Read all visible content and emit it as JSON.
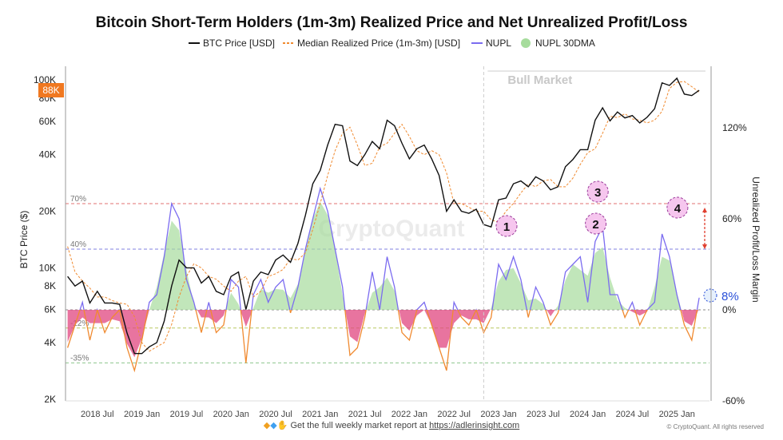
{
  "chart_data": {
    "type": "line",
    "title": "Bitcoin Short-Term Holders (1m-3m)  Realized Price and Net Unrealized Profit/Loss",
    "ylabel": "BTC Price ($)",
    "y2label": "Unrealized Profit/Loss Margin",
    "yscale": "log",
    "ylim": [
      2000,
      120000
    ],
    "y2lim": [
      -60,
      150
    ],
    "grid": false,
    "legend_placement": "top",
    "legend": [
      "BTC Price [USD]",
      "Median Realized Price (1m-3m) [USD]",
      "NUPL",
      "NUPL 30DMA"
    ],
    "y_ticks": [
      {
        "v": 100000,
        "label": "100K"
      },
      {
        "v": 80000,
        "label": "80K"
      },
      {
        "v": 60000,
        "label": "60K"
      },
      {
        "v": 40000,
        "label": "40K"
      },
      {
        "v": 20000,
        "label": "20K"
      },
      {
        "v": 10000,
        "label": "10K"
      },
      {
        "v": 8000,
        "label": "8K"
      },
      {
        "v": 6000,
        "label": "6K"
      },
      {
        "v": 4000,
        "label": "4K"
      },
      {
        "v": 2000,
        "label": "2K"
      }
    ],
    "y2_ticks": [
      {
        "v": 120,
        "label": "120%"
      },
      {
        "v": 60,
        "label": "60%"
      },
      {
        "v": 0,
        "label": "0%"
      },
      {
        "v": -60,
        "label": "-60%"
      }
    ],
    "x_ticks": [
      {
        "d": "2018-07",
        "label": "2018 Jul"
      },
      {
        "d": "2019-01",
        "label": "2019 Jan"
      },
      {
        "d": "2019-07",
        "label": "2019 Jul"
      },
      {
        "d": "2020-01",
        "label": "2020 Jan"
      },
      {
        "d": "2020-07",
        "label": "2020 Jul"
      },
      {
        "d": "2021-01",
        "label": "2021 Jan"
      },
      {
        "d": "2021-07",
        "label": "2021 Jul"
      },
      {
        "d": "2022-01",
        "label": "2022 Jan"
      },
      {
        "d": "2022-07",
        "label": "2022 Jul"
      },
      {
        "d": "2023-01",
        "label": "2023 Jan"
      },
      {
        "d": "2023-07",
        "label": "2023 Jul"
      },
      {
        "d": "2024-01",
        "label": "2024 Jan"
      },
      {
        "d": "2024-07",
        "label": "2024 Jul"
      },
      {
        "d": "2025-01",
        "label": "2025 Jan"
      }
    ],
    "x": [
      "2018-03",
      "2018-04",
      "2018-05",
      "2018-06",
      "2018-07",
      "2018-08",
      "2018-09",
      "2018-10",
      "2018-11",
      "2018-12",
      "2019-01",
      "2019-02",
      "2019-03",
      "2019-04",
      "2019-05",
      "2019-06",
      "2019-07",
      "2019-08",
      "2019-09",
      "2019-10",
      "2019-11",
      "2019-12",
      "2020-01",
      "2020-02",
      "2020-03",
      "2020-04",
      "2020-05",
      "2020-06",
      "2020-07",
      "2020-08",
      "2020-09",
      "2020-10",
      "2020-11",
      "2020-12",
      "2021-01",
      "2021-02",
      "2021-03",
      "2021-04",
      "2021-05",
      "2021-06",
      "2021-07",
      "2021-08",
      "2021-09",
      "2021-10",
      "2021-11",
      "2021-12",
      "2022-01",
      "2022-02",
      "2022-03",
      "2022-04",
      "2022-05",
      "2022-06",
      "2022-07",
      "2022-08",
      "2022-09",
      "2022-10",
      "2022-11",
      "2022-12",
      "2023-01",
      "2023-02",
      "2023-03",
      "2023-04",
      "2023-05",
      "2023-06",
      "2023-07",
      "2023-08",
      "2023-09",
      "2023-10",
      "2023-11",
      "2023-12",
      "2024-01",
      "2024-02",
      "2024-03",
      "2024-04",
      "2024-05",
      "2024-06",
      "2024-07",
      "2024-08",
      "2024-09",
      "2024-10",
      "2024-11",
      "2024-12",
      "2025-01",
      "2025-02",
      "2025-03",
      "2025-04"
    ],
    "series": [
      {
        "name": "BTC Price [USD]",
        "axis": "left",
        "color": "#111111",
        "values": [
          9000,
          8000,
          8500,
          6500,
          7500,
          6500,
          6500,
          6400,
          4500,
          3500,
          3500,
          3800,
          4000,
          5200,
          8000,
          11000,
          10000,
          10000,
          8300,
          9000,
          7500,
          7200,
          9000,
          9500,
          6000,
          8500,
          9500,
          9200,
          11000,
          11700,
          10700,
          13500,
          19000,
          28000,
          33000,
          45000,
          58000,
          57000,
          37000,
          35000,
          40000,
          47000,
          43000,
          61000,
          57000,
          46000,
          38000,
          43000,
          45000,
          38000,
          31000,
          20000,
          23000,
          20000,
          19500,
          20500,
          17000,
          16500,
          23000,
          23500,
          28000,
          29000,
          27000,
          30500,
          29000,
          26000,
          27000,
          34500,
          37700,
          42500,
          42500,
          61000,
          71000,
          60500,
          67500,
          62700,
          64600,
          59000,
          63300,
          70200,
          96400,
          93400,
          102000,
          84000,
          82500,
          88000
        ]
      },
      {
        "name": "Median Realized Price (1m-3m) [USD]",
        "axis": "left",
        "color": "#f08a30",
        "values": [
          13000,
          9500,
          8500,
          7800,
          7000,
          7000,
          6700,
          6500,
          6400,
          5500,
          4000,
          3600,
          3800,
          4000,
          5000,
          7000,
          9000,
          10500,
          10000,
          9000,
          8700,
          8000,
          7500,
          8500,
          9000,
          7000,
          7500,
          9000,
          9300,
          9800,
          11200,
          11000,
          12000,
          16000,
          22000,
          31000,
          42000,
          52000,
          56000,
          45000,
          35000,
          36000,
          44000,
          46000,
          52000,
          58000,
          50000,
          42000,
          40000,
          42000,
          40000,
          32000,
          22000,
          22000,
          21000,
          20000,
          20000,
          18000,
          17500,
          20000,
          22000,
          25000,
          28000,
          27000,
          29000,
          29500,
          27000,
          27000,
          30000,
          35500,
          41000,
          43000,
          52000,
          64000,
          63000,
          66000,
          62000,
          61000,
          59000,
          61000,
          68000,
          90000,
          97000,
          98000,
          92000,
          86000
        ]
      },
      {
        "name": "NUPL",
        "axis": "right",
        "color": "#7b6cf0",
        "negative_color": "#f08a30",
        "values": [
          -25,
          -10,
          5,
          -20,
          0,
          -15,
          -5,
          0,
          -25,
          -40,
          -20,
          5,
          10,
          35,
          70,
          60,
          20,
          5,
          -15,
          5,
          -15,
          -10,
          20,
          15,
          -35,
          10,
          20,
          5,
          15,
          20,
          -2,
          15,
          40,
          60,
          80,
          65,
          40,
          15,
          -30,
          -25,
          -5,
          25,
          0,
          35,
          15,
          -15,
          -20,
          0,
          5,
          -10,
          -25,
          -40,
          5,
          -5,
          -10,
          0,
          -15,
          -5,
          30,
          20,
          35,
          20,
          -5,
          15,
          5,
          -10,
          -2,
          25,
          30,
          35,
          5,
          45,
          55,
          10,
          10,
          -5,
          5,
          -10,
          0,
          5,
          50,
          35,
          10,
          -10,
          -20,
          8
        ]
      },
      {
        "name": "NUPL 30DMA",
        "axis": "right",
        "color": "#a6dc9c",
        "negative_color": "#e0457f",
        "derived_from": "NUPL"
      }
    ],
    "reference_lines": [
      {
        "v": 70,
        "label": "70%",
        "color": "#e07070"
      },
      {
        "v": 40,
        "label": "40%",
        "color": "#8080e0"
      },
      {
        "v": -12,
        "label": "-12%",
        "color": "#b8c860"
      },
      {
        "v": -35,
        "label": "-35%",
        "color": "#90c890"
      }
    ],
    "annotations": {
      "region_label": "Bull Market",
      "region_start": "2022-11",
      "current_price_badge": "88K",
      "current_nupl_label": "8%",
      "peaks": [
        {
          "label": "1",
          "d": "2023-01"
        },
        {
          "label": "2",
          "d": "2024-01"
        },
        {
          "label": "3",
          "d": "2024-03"
        },
        {
          "label": "4",
          "d": "2024-12"
        }
      ],
      "watermark": "CryptoQuant"
    },
    "colors": {
      "badge": "#f07820",
      "circle_fill": "#f6c6ee",
      "circle_stroke": "#9a3a9a",
      "current_label": "#2a50d8"
    }
  },
  "footer": {
    "promo_text": "Get the full weekly market report at ",
    "link": "https://adlerinsight.com",
    "copyright": "© CryptoQuant. All rights reserved"
  }
}
